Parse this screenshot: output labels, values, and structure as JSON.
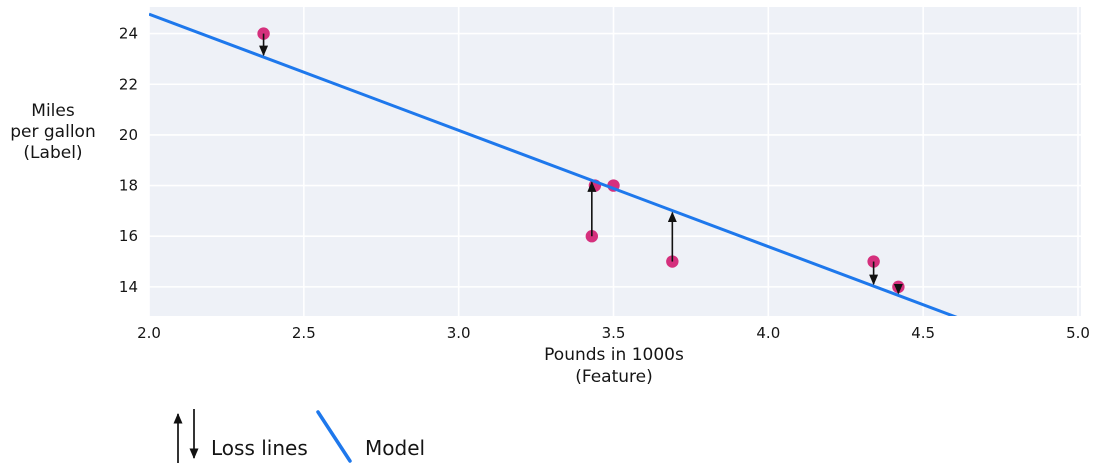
{
  "chart_data": {
    "type": "scatter",
    "title": "",
    "xlabel_lines": [
      "Pounds in 1000s",
      "(Feature)"
    ],
    "ylabel_lines": [
      "Miles",
      "per gallon",
      "(Label)"
    ],
    "xlim": [
      2.0,
      5.0
    ],
    "ylim": [
      12.85,
      25.05
    ],
    "xtick_values": [
      2.0,
      2.5,
      3.0,
      3.5,
      4.0,
      4.5,
      5.0
    ],
    "xtick_labels": [
      "2.0",
      "2.5",
      "3.0",
      "3.5",
      "4.0",
      "4.5",
      "5.0"
    ],
    "ytick_values": [
      14,
      16,
      18,
      20,
      22,
      24
    ],
    "ytick_labels": [
      "14",
      "16",
      "18",
      "20",
      "22",
      "24"
    ],
    "grid": true,
    "points": [
      {
        "x": 2.37,
        "y": 24
      },
      {
        "x": 3.43,
        "y": 16
      },
      {
        "x": 3.44,
        "y": 18
      },
      {
        "x": 3.5,
        "y": 18
      },
      {
        "x": 3.69,
        "y": 15
      },
      {
        "x": 4.34,
        "y": 15
      },
      {
        "x": 4.42,
        "y": 14
      }
    ],
    "model_line": {
      "slope": -4.59,
      "intercept": 33.95
    },
    "loss_arrows": [
      {
        "x": 2.37,
        "from_y": 24
      },
      {
        "x": 3.43,
        "from_y": 16
      },
      {
        "x": 3.69,
        "from_y": 15
      },
      {
        "x": 4.34,
        "from_y": 15
      },
      {
        "x": 4.42,
        "from_y": 14
      }
    ],
    "legend": [
      {
        "icon": "loss-arrows",
        "label": "Loss lines"
      },
      {
        "icon": "model-line",
        "label": "Model"
      }
    ],
    "colors": {
      "point": "#d5307d",
      "line": "#1e78ec",
      "plot_bg": "#eef1f7",
      "grid": "#ffffff",
      "arrow": "#111111",
      "text": "#151515"
    }
  }
}
